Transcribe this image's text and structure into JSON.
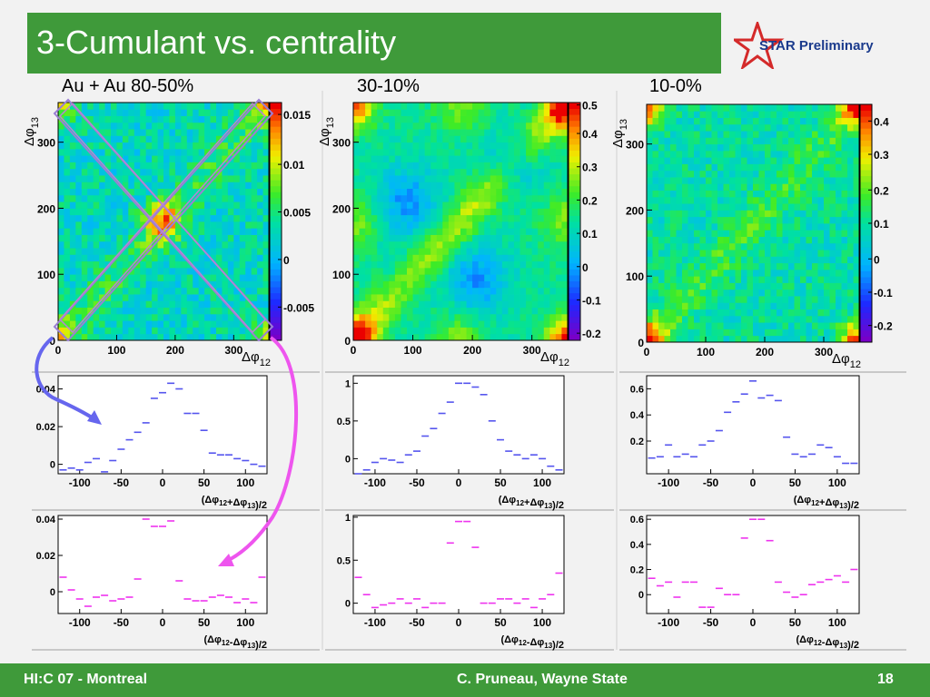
{
  "title": "3-Cumulant vs. centrality",
  "badge": "STAR Preliminary",
  "footer": {
    "left": "HI:C 07 - Montreal",
    "center": "C. Pruneau, Wayne State",
    "right": "18"
  },
  "colors": {
    "green": "#3f9a3a",
    "blue_marker": "#5555ee",
    "magenta_marker": "#ee33ee",
    "arrow_blue": "#6666ee",
    "arrow_magenta": "#ee55ee",
    "box": "#9a7fd4"
  },
  "chart_data": [
    {
      "type": "heatmap",
      "panel": "80-50%",
      "title": "Au + Au  80-50%",
      "xlabel": "Δφ12",
      "ylabel": "Δφ13",
      "xlim": [
        0,
        360
      ],
      "ylim": [
        0,
        360
      ],
      "xticks": [
        "0",
        "100",
        "200",
        "300"
      ],
      "yticks": [
        "0",
        "100",
        "200",
        "300"
      ],
      "zticks": [
        "-0.005",
        "0",
        "0.005",
        "0.01",
        "0.015"
      ],
      "zlim": [
        -0.008,
        0.018
      ],
      "features": "diagonal ridge along Δφ12=Δφ13, corner peaks, central peak near (180,180)"
    },
    {
      "type": "heatmap",
      "panel": "30-10%",
      "title": "30-10%",
      "xlabel": "Δφ12",
      "ylabel": "Δφ13",
      "xlim": [
        0,
        360
      ],
      "ylim": [
        0,
        360
      ],
      "xticks": [
        "0",
        "100",
        "200",
        "300"
      ],
      "yticks": [
        "0",
        "100",
        "200",
        "300"
      ],
      "zticks": [
        "-0.2",
        "-0.1",
        "0",
        "0.1",
        "0.2",
        "0.3",
        "0.4",
        "0.5"
      ],
      "zlim": [
        -0.2,
        0.52
      ],
      "features": "corner peaks, diagonal ridge, side-peaks at 180"
    },
    {
      "type": "heatmap",
      "panel": "10-0%",
      "title": "10-0%",
      "xlabel": "Δφ12",
      "ylabel": "Δφ13",
      "xlim": [
        0,
        360
      ],
      "ylim": [
        0,
        360
      ],
      "xticks": [
        "0",
        "100",
        "200",
        "300"
      ],
      "yticks": [
        "0",
        "100",
        "200",
        "300"
      ],
      "zticks": [
        "-0.2",
        "-0.1",
        "0",
        "0.1",
        "0.2",
        "0.3",
        "0.4"
      ],
      "zlim": [
        -0.25,
        0.45
      ],
      "features": "corner peaks, weak diagonal ridge"
    },
    {
      "type": "scatter",
      "panel": "80-50% sum",
      "xlabel": "(Δφ12+Δφ13)/2",
      "xlim": [
        -126,
        126
      ],
      "ylim": [
        -0.005,
        0.047
      ],
      "xticks": [
        "-100",
        "-50",
        "0",
        "50",
        "100"
      ],
      "yticks": [
        "0",
        "0.02",
        "0.04"
      ],
      "x": [
        -120,
        -110,
        -100,
        -90,
        -80,
        -70,
        -60,
        -50,
        -40,
        -30,
        -20,
        -10,
        0,
        10,
        20,
        30,
        40,
        50,
        60,
        70,
        80,
        90,
        100,
        110,
        120
      ],
      "y": [
        -0.003,
        -0.002,
        -0.003,
        0.001,
        0.003,
        -0.004,
        0.002,
        0.008,
        0.013,
        0.017,
        0.022,
        0.035,
        0.038,
        0.043,
        0.04,
        0.027,
        0.027,
        0.018,
        0.006,
        0.005,
        0.005,
        0.003,
        0.002,
        0.0,
        -0.001
      ]
    },
    {
      "type": "scatter",
      "panel": "30-10% sum",
      "xlabel": "(Δφ12+Δφ13)/2",
      "xlim": [
        -126,
        126
      ],
      "ylim": [
        -0.2,
        1.1
      ],
      "xticks": [
        "-100",
        "-50",
        "0",
        "50",
        "100"
      ],
      "yticks": [
        "0",
        "0.5",
        "1"
      ],
      "x": [
        -120,
        -110,
        -100,
        -90,
        -80,
        -70,
        -60,
        -50,
        -40,
        -30,
        -20,
        -10,
        0,
        10,
        20,
        30,
        40,
        50,
        60,
        70,
        80,
        90,
        100,
        110,
        120
      ],
      "y": [
        -0.2,
        -0.15,
        -0.05,
        0.0,
        -0.02,
        -0.05,
        0.05,
        0.1,
        0.3,
        0.4,
        0.6,
        0.75,
        1.0,
        1.0,
        0.95,
        0.85,
        0.5,
        0.25,
        0.1,
        0.05,
        0.0,
        0.05,
        0.0,
        -0.1,
        -0.15
      ]
    },
    {
      "type": "scatter",
      "panel": "10-0% sum",
      "xlabel": "(Δφ12+Δφ13)/2",
      "xlim": [
        -126,
        126
      ],
      "ylim": [
        -0.05,
        0.7
      ],
      "xticks": [
        "-100",
        "-50",
        "0",
        "50",
        "100"
      ],
      "yticks": [
        "0.2",
        "0.4",
        "0.6"
      ],
      "x": [
        -120,
        -110,
        -100,
        -90,
        -80,
        -70,
        -60,
        -50,
        -40,
        -30,
        -20,
        -10,
        0,
        10,
        20,
        30,
        40,
        50,
        60,
        70,
        80,
        90,
        100,
        110,
        120
      ],
      "y": [
        0.07,
        0.08,
        0.17,
        0.08,
        0.1,
        0.08,
        0.17,
        0.2,
        0.28,
        0.42,
        0.5,
        0.56,
        0.66,
        0.53,
        0.55,
        0.51,
        0.23,
        0.1,
        0.08,
        0.1,
        0.17,
        0.15,
        0.08,
        0.03,
        0.03
      ]
    },
    {
      "type": "scatter",
      "panel": "80-50% diff",
      "xlabel": "(Δφ12-Δφ13)/2",
      "xlim": [
        -126,
        126
      ],
      "ylim": [
        -0.012,
        0.042
      ],
      "xticks": [
        "-100",
        "-50",
        "0",
        "50",
        "100"
      ],
      "yticks": [
        "0",
        "0.02",
        "0.04"
      ],
      "x": [
        -120,
        -110,
        -100,
        -90,
        -80,
        -70,
        -60,
        -50,
        -40,
        -30,
        -20,
        -10,
        0,
        10,
        20,
        30,
        40,
        50,
        60,
        70,
        80,
        90,
        100,
        110,
        120
      ],
      "y": [
        0.008,
        0.001,
        -0.004,
        -0.008,
        -0.003,
        -0.002,
        -0.005,
        -0.004,
        -0.003,
        0.007,
        0.04,
        0.036,
        0.036,
        0.039,
        0.006,
        -0.004,
        -0.005,
        -0.005,
        -0.003,
        -0.002,
        -0.003,
        -0.006,
        -0.004,
        -0.006,
        0.008
      ]
    },
    {
      "type": "scatter",
      "panel": "30-10% diff",
      "xlabel": "(Δφ12-Δφ13)/2",
      "xlim": [
        -126,
        126
      ],
      "ylim": [
        -0.12,
        1.02
      ],
      "xticks": [
        "-100",
        "-50",
        "0",
        "50",
        "100"
      ],
      "yticks": [
        "0",
        "0.5",
        "1"
      ],
      "x": [
        -120,
        -110,
        -100,
        -90,
        -80,
        -70,
        -60,
        -50,
        -40,
        -30,
        -20,
        -10,
        0,
        10,
        20,
        30,
        40,
        50,
        60,
        70,
        80,
        90,
        100,
        110,
        120
      ],
      "y": [
        0.3,
        0.1,
        -0.05,
        -0.02,
        0.0,
        0.05,
        0.0,
        0.05,
        -0.05,
        0.0,
        0.0,
        0.7,
        0.95,
        0.95,
        0.65,
        0.0,
        0.0,
        0.05,
        0.05,
        0.0,
        0.05,
        -0.05,
        0.05,
        0.1,
        0.35
      ]
    },
    {
      "type": "scatter",
      "panel": "10-0% diff",
      "xlabel": "(Δφ12-Δφ13)/2",
      "xlim": [
        -126,
        126
      ],
      "ylim": [
        -0.15,
        0.63
      ],
      "xticks": [
        "-100",
        "-50",
        "0",
        "50",
        "100"
      ],
      "yticks": [
        "0",
        "0.2",
        "0.4",
        "0.6"
      ],
      "x": [
        -120,
        -110,
        -100,
        -90,
        -80,
        -70,
        -60,
        -50,
        -40,
        -30,
        -20,
        -10,
        0,
        10,
        20,
        30,
        40,
        50,
        60,
        70,
        80,
        90,
        100,
        110,
        120
      ],
      "y": [
        0.13,
        0.07,
        0.1,
        -0.02,
        0.1,
        0.1,
        -0.1,
        -0.1,
        0.05,
        0.0,
        0.0,
        0.45,
        0.6,
        0.6,
        0.43,
        0.1,
        0.02,
        -0.02,
        0.0,
        0.08,
        0.1,
        0.12,
        0.15,
        0.1,
        0.2
      ]
    }
  ]
}
